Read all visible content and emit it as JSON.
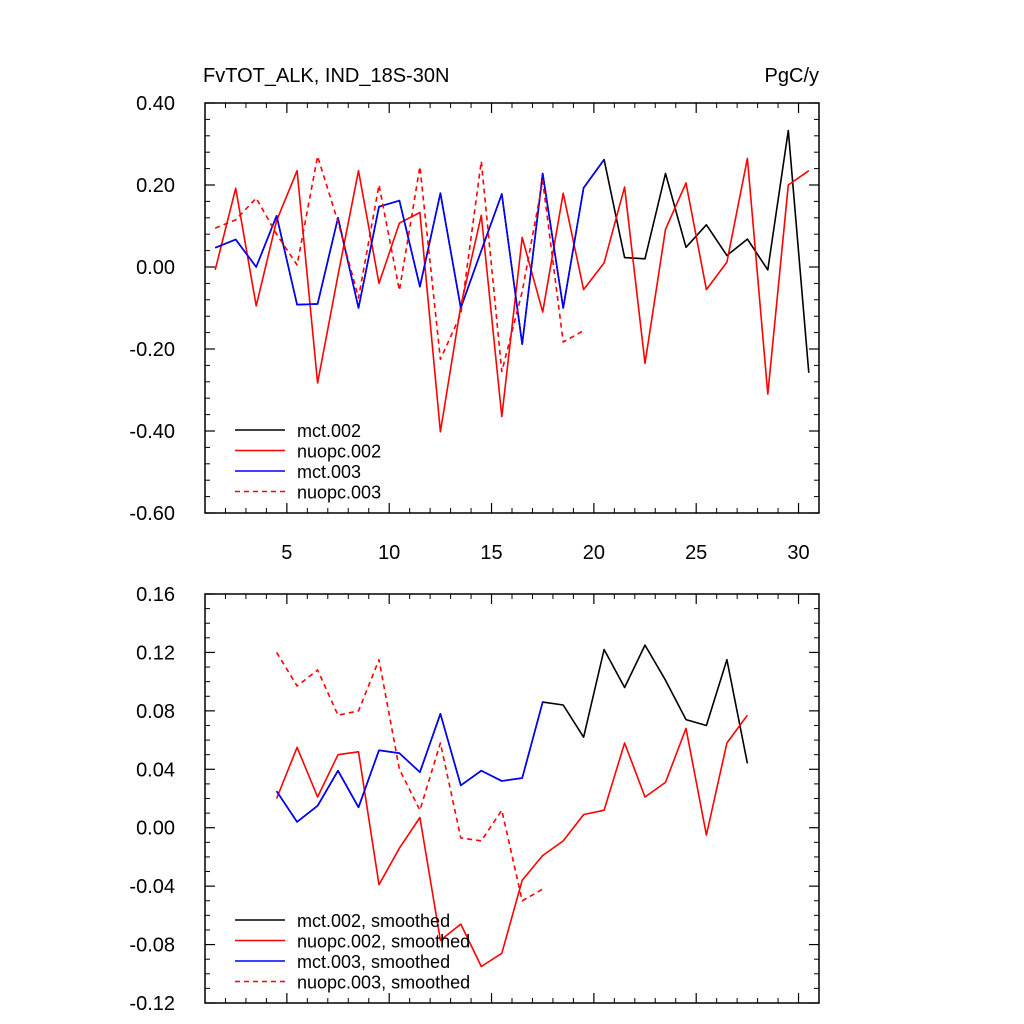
{
  "chart_data": [
    {
      "type": "line",
      "title": "FvTOT_ALK, IND_18S-30N",
      "units": "PgC/y",
      "xlim": [
        1,
        31
      ],
      "ylim": [
        -0.6,
        0.4
      ],
      "x_ticks": [
        "5",
        "10",
        "15",
        "20",
        "25",
        "30"
      ],
      "y_ticks": [
        "-0.60",
        "-0.40",
        "-0.20",
        "0.00",
        "0.20",
        "0.40"
      ],
      "legend_position": "bottom-left",
      "legend": [
        "mct.002",
        "nuopc.002",
        "mct.003",
        "nuopc.003"
      ],
      "series": [
        {
          "name": "mct.002",
          "color": "#000000",
          "dash": "solid",
          "x_start": 1.5,
          "values": [
            0.047,
            0.067,
            0.0,
            0.125,
            -0.092,
            -0.09,
            0.12,
            -0.1,
            0.147,
            0.162,
            -0.048,
            0.18,
            -0.1,
            0.04,
            0.178,
            -0.188,
            0.228,
            -0.1,
            0.193,
            0.262,
            0.023,
            0.02,
            0.228,
            0.048,
            0.103,
            0.028,
            0.068,
            -0.007,
            0.333,
            -0.258
          ]
        },
        {
          "name": "nuopc.002",
          "color": "#ff0000",
          "dash": "solid",
          "x_start": 1.5,
          "values": [
            -0.007,
            0.192,
            -0.095,
            0.113,
            0.235,
            -0.283,
            -0.02,
            0.235,
            -0.04,
            0.107,
            0.133,
            -0.402,
            -0.095,
            0.126,
            -0.365,
            0.072,
            -0.11,
            0.18,
            -0.055,
            0.01,
            0.195,
            -0.235,
            0.092,
            0.205,
            -0.055,
            0.012,
            0.265,
            -0.31,
            0.2,
            0.235
          ]
        },
        {
          "name": "mct.003",
          "color": "#0000ff",
          "dash": "solid",
          "x_start": 1.5,
          "values": [
            0.047,
            0.067,
            0.0,
            0.125,
            -0.092,
            -0.09,
            0.12,
            -0.1,
            0.147,
            0.162,
            -0.048,
            0.18,
            -0.1,
            0.04,
            0.178,
            -0.188,
            0.228,
            -0.1,
            0.193,
            0.262
          ]
        },
        {
          "name": "nuopc.003",
          "color": "#ff0000",
          "dash": "dashed",
          "x_start": 1.5,
          "values": [
            0.095,
            0.115,
            0.168,
            0.08,
            0.005,
            0.27,
            0.11,
            -0.075,
            0.2,
            -0.057,
            0.245,
            -0.225,
            -0.115,
            0.258,
            -0.255,
            -0.06,
            0.21,
            -0.183,
            -0.155
          ]
        }
      ]
    },
    {
      "type": "line",
      "xlim": [
        1,
        31
      ],
      "ylim": [
        -0.12,
        0.16
      ],
      "y_ticks": [
        "-0.12",
        "-0.08",
        "-0.04",
        "0.00",
        "0.04",
        "0.08",
        "0.12",
        "0.16"
      ],
      "legend_position": "bottom-left",
      "legend": [
        "mct.002, smoothed",
        "nuopc.002, smoothed",
        "mct.003, smoothed",
        "nuopc.003, smoothed"
      ],
      "series": [
        {
          "name": "mct.002, smoothed",
          "color": "#000000",
          "dash": "solid",
          "x_start": 4.5,
          "values": [
            0.025,
            0.004,
            0.015,
            0.039,
            0.014,
            0.053,
            0.051,
            0.038,
            0.078,
            0.029,
            0.039,
            0.032,
            0.034,
            0.086,
            0.084,
            0.062,
            0.122,
            0.096,
            0.125,
            0.101,
            0.074,
            0.07,
            0.115,
            0.044
          ]
        },
        {
          "name": "nuopc.002, smoothed",
          "color": "#ff0000",
          "dash": "solid",
          "x_start": 4.5,
          "values": [
            0.02,
            0.055,
            0.021,
            0.05,
            0.052,
            -0.039,
            -0.014,
            0.007,
            -0.077,
            -0.066,
            -0.095,
            -0.086,
            -0.036,
            -0.019,
            -0.009,
            0.009,
            0.012,
            0.058,
            0.021,
            0.031,
            0.068,
            -0.005,
            0.058,
            0.077
          ]
        },
        {
          "name": "mct.003, smoothed",
          "color": "#0000ff",
          "dash": "solid",
          "x_start": 4.5,
          "values": [
            0.025,
            0.004,
            0.015,
            0.039,
            0.014,
            0.053,
            0.051,
            0.038,
            0.078,
            0.029,
            0.039,
            0.032,
            0.034,
            0.086
          ]
        },
        {
          "name": "nuopc.003, smoothed",
          "color": "#ff0000",
          "dash": "dashed",
          "x_start": 4.5,
          "values": [
            0.12,
            0.097,
            0.108,
            0.077,
            0.08,
            0.115,
            0.04,
            0.012,
            0.058,
            -0.007,
            -0.009,
            0.012,
            -0.05,
            -0.042
          ]
        }
      ]
    }
  ]
}
